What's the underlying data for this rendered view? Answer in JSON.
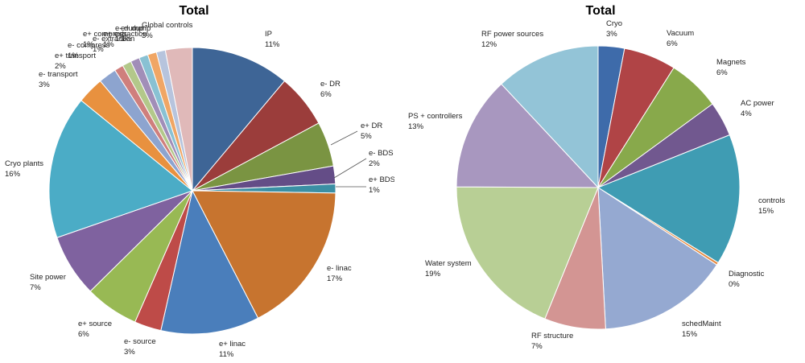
{
  "chart_data": [
    {
      "type": "pie",
      "title": "Total",
      "categories": [
        "IP",
        "e- DR",
        "e+ DR",
        "e- BDS",
        "e+ BDS",
        "e- linac",
        "e+ linac",
        "e- source",
        "e+ source",
        "Site power",
        "Cryo plants",
        "e- transport",
        "e+ transport",
        "e- compress",
        "e- extraction",
        "e+ compress",
        "e- dump",
        "e+ extraction",
        "e+ dump",
        "Global controls"
      ],
      "values": [
        11,
        6,
        5,
        2,
        1,
        17,
        11,
        3,
        6,
        7,
        16,
        3,
        2,
        1,
        1,
        1,
        1,
        1,
        1,
        3
      ],
      "labels": [
        {
          "name": "IP",
          "pct": "11%"
        },
        {
          "name": "e- DR",
          "pct": "6%"
        },
        {
          "name": "e+ DR",
          "pct": "5%"
        },
        {
          "name": "e- BDS",
          "pct": "2%"
        },
        {
          "name": "e+ BDS",
          "pct": "1%"
        },
        {
          "name": "e- linac",
          "pct": "17%"
        },
        {
          "name": "e+ linac",
          "pct": "11%"
        },
        {
          "name": "e- source",
          "pct": "3%"
        },
        {
          "name": "e+ source",
          "pct": "6%"
        },
        {
          "name": "Site power",
          "pct": "7%"
        },
        {
          "name": "Cryo plants",
          "pct": "16%"
        },
        {
          "name": "e- transport",
          "pct": "3%"
        },
        {
          "name": "e+ transport",
          "pct": "2%"
        },
        {
          "name": "e- compress",
          "pct": "1%"
        },
        {
          "name": "e- extraction",
          "pct": "1%"
        },
        {
          "name": "e+ compress",
          "pct": "1%"
        },
        {
          "name": "e- dump",
          "pct": "1%"
        },
        {
          "name": "e+ extraction",
          "pct": "1%"
        },
        {
          "name": "e+ dump",
          "pct": "1%"
        },
        {
          "name": "Global controls",
          "pct": "3%"
        }
      ],
      "colors": [
        "#3E6596",
        "#9B3D3B",
        "#7A9442",
        "#644D87",
        "#3B8FA4",
        "#C7742F",
        "#4A7EBB",
        "#BE4B48",
        "#98B954",
        "#7F629F",
        "#4BACC6",
        "#E8913F",
        "#8DA4CF",
        "#CF7F7D",
        "#B3C88A",
        "#A18EB8",
        "#89C1D3",
        "#F0A665",
        "#B7C4DD",
        "#E0B9B9"
      ],
      "start_angle_deg": 0,
      "direction": "clockwise"
    },
    {
      "type": "pie",
      "title": "Total",
      "categories": [
        "Cryo",
        "Vacuum",
        "Magnets",
        "AC power",
        "controls",
        "Diagnostic",
        "schedMaint",
        "RF structure",
        "Water system",
        "PS + controllers",
        "RF power sources"
      ],
      "values": [
        3,
        6,
        6,
        4,
        15,
        0.3,
        15,
        7,
        19,
        13,
        12
      ],
      "labels": [
        {
          "name": "Cryo",
          "pct": "3%"
        },
        {
          "name": "Vacuum",
          "pct": "6%"
        },
        {
          "name": "Magnets",
          "pct": "6%"
        },
        {
          "name": "AC power",
          "pct": "4%"
        },
        {
          "name": "controls",
          "pct": "15%"
        },
        {
          "name": "Diagnostic",
          "pct": "0%"
        },
        {
          "name": "schedMaint",
          "pct": "15%"
        },
        {
          "name": "RF structure",
          "pct": "7%"
        },
        {
          "name": "Water system",
          "pct": "19%"
        },
        {
          "name": "PS + controllers",
          "pct": "13%"
        },
        {
          "name": "RF power sources",
          "pct": "12%"
        }
      ],
      "colors": [
        "#3E6BAA",
        "#B04446",
        "#88A94B",
        "#71588F",
        "#3F9CB3",
        "#E6893E",
        "#95A9D1",
        "#D39593",
        "#B8CF95",
        "#A897BF",
        "#93C4D7"
      ],
      "start_angle_deg": 0,
      "direction": "clockwise"
    }
  ]
}
